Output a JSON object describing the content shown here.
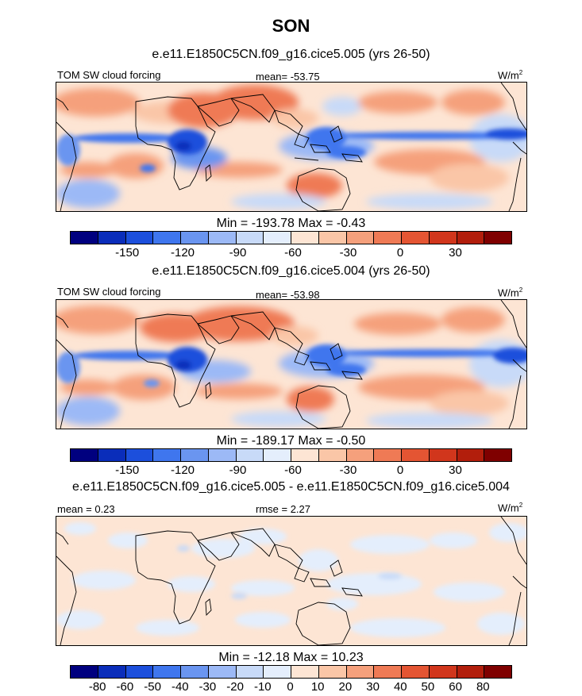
{
  "title": "SON",
  "panels": [
    {
      "title": "e.e11.E1850C5CN.f09_g16.cice5.005 (yrs 26-50)",
      "left_label": "TOM SW cloud forcing",
      "center_label": "mean= -53.75",
      "units_base": "W/m",
      "units_sup": "2",
      "minmax": "Min = -193.78 Max =  -0.43",
      "colorbar_labels": [
        "-150",
        "-120",
        "-90",
        "-60",
        "-30",
        "0",
        "30"
      ]
    },
    {
      "title": "e.e11.E1850C5CN.f09_g16.cice5.004 (yrs 26-50)",
      "left_label": "TOM SW cloud forcing",
      "center_label": "mean= -53.98",
      "units_base": "W/m",
      "units_sup": "2",
      "minmax": "Min = -189.17 Max =  -0.50",
      "colorbar_labels": [
        "-150",
        "-120",
        "-90",
        "-60",
        "-30",
        "0",
        "30"
      ]
    },
    {
      "title": "e.e11.E1850C5CN.f09_g16.cice5.005 - e.e11.E1850C5CN.f09_g16.cice5.004",
      "left_label": "mean =   0.23",
      "center_label": "rmse =   2.27",
      "units_base": "W/m",
      "units_sup": "2",
      "minmax": "Min = -12.18 Max =  10.23",
      "colorbar_labels": [
        "-80",
        "-60",
        "-50",
        "-40",
        "-30",
        "-20",
        "-10",
        "0",
        "10",
        "20",
        "30",
        "40",
        "50",
        "60",
        "80"
      ]
    }
  ],
  "colorbar_colors": [
    "#00007f",
    "#0a2dba",
    "#1c4fdc",
    "#3f76ee",
    "#6a95f0",
    "#9cb9f6",
    "#c8daf8",
    "#e4eefc",
    "#fde5d4",
    "#fac6a7",
    "#f5a07c",
    "#ef7a55",
    "#e45533",
    "#d1361c",
    "#b21e0c",
    "#7f0000"
  ],
  "colors": {
    "land_outline": "#000000",
    "background_pos": "#fde5d4",
    "background_neg": "#e4eefc"
  }
}
